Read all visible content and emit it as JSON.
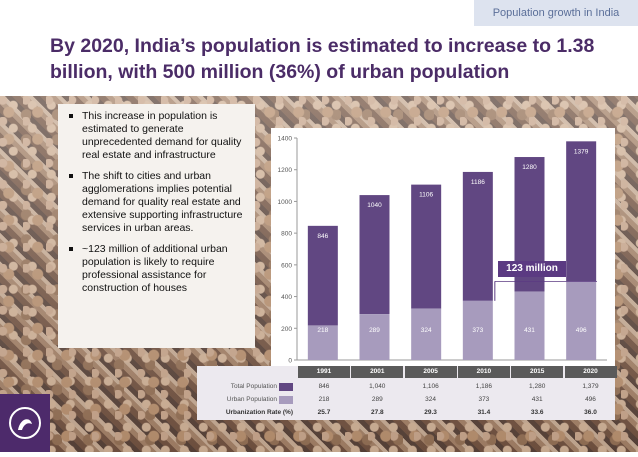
{
  "header": {
    "tag": "Population growth in India",
    "title": "By 2020, India’s population is estimated to increase to 1.38 billion, with 500 million (36%) of urban population"
  },
  "bullets": [
    "This increase in  population is estimated to generate unprecedented demand for quality real estate and infrastructure",
    "The shift to cities and urban agglomerations implies potential demand for quality real estate and extensive supporting infrastructure services in urban areas.",
    "~123 million of additional urban population is likely to require professional assistance for construction of houses"
  ],
  "callout": {
    "label": "123 million"
  },
  "colors": {
    "title": "#4b2c67",
    "total_bar": "#614782",
    "urban_bar": "#a79bbd",
    "callout": "#5b3a82"
  },
  "chart_data": {
    "type": "bar",
    "categories": [
      "1991",
      "2001",
      "2005",
      "2010",
      "2015",
      "2020"
    ],
    "series": [
      {
        "name": "Total Population",
        "values": [
          846,
          1040,
          1106,
          1186,
          1280,
          1379
        ],
        "labels": [
          "846",
          "1,040",
          "1,106",
          "1,186",
          "1,280",
          "1,379"
        ]
      },
      {
        "name": "Urban Population",
        "values": [
          218,
          289,
          324,
          373,
          431,
          496
        ],
        "labels": [
          "218",
          "289",
          "324",
          "373",
          "431",
          "496"
        ]
      },
      {
        "name": "Urbanization Rate (%)",
        "values": [
          25.7,
          27.8,
          29.3,
          31.4,
          33.6,
          36.0
        ],
        "labels": [
          "25.7",
          "27.8",
          "29.3",
          "31.4",
          "33.6",
          "36.0"
        ]
      }
    ],
    "bar_labels_total": [
      "846",
      "1040",
      "1106",
      "1186",
      "1280",
      "1379"
    ],
    "bar_labels_urban": [
      "218",
      "289",
      "324",
      "373",
      "431",
      "496"
    ],
    "ylim": [
      0,
      1400
    ],
    "yticks": [
      "0",
      "200",
      "400",
      "600",
      "800",
      "1000",
      "1200",
      "1400"
    ],
    "grid": false
  }
}
